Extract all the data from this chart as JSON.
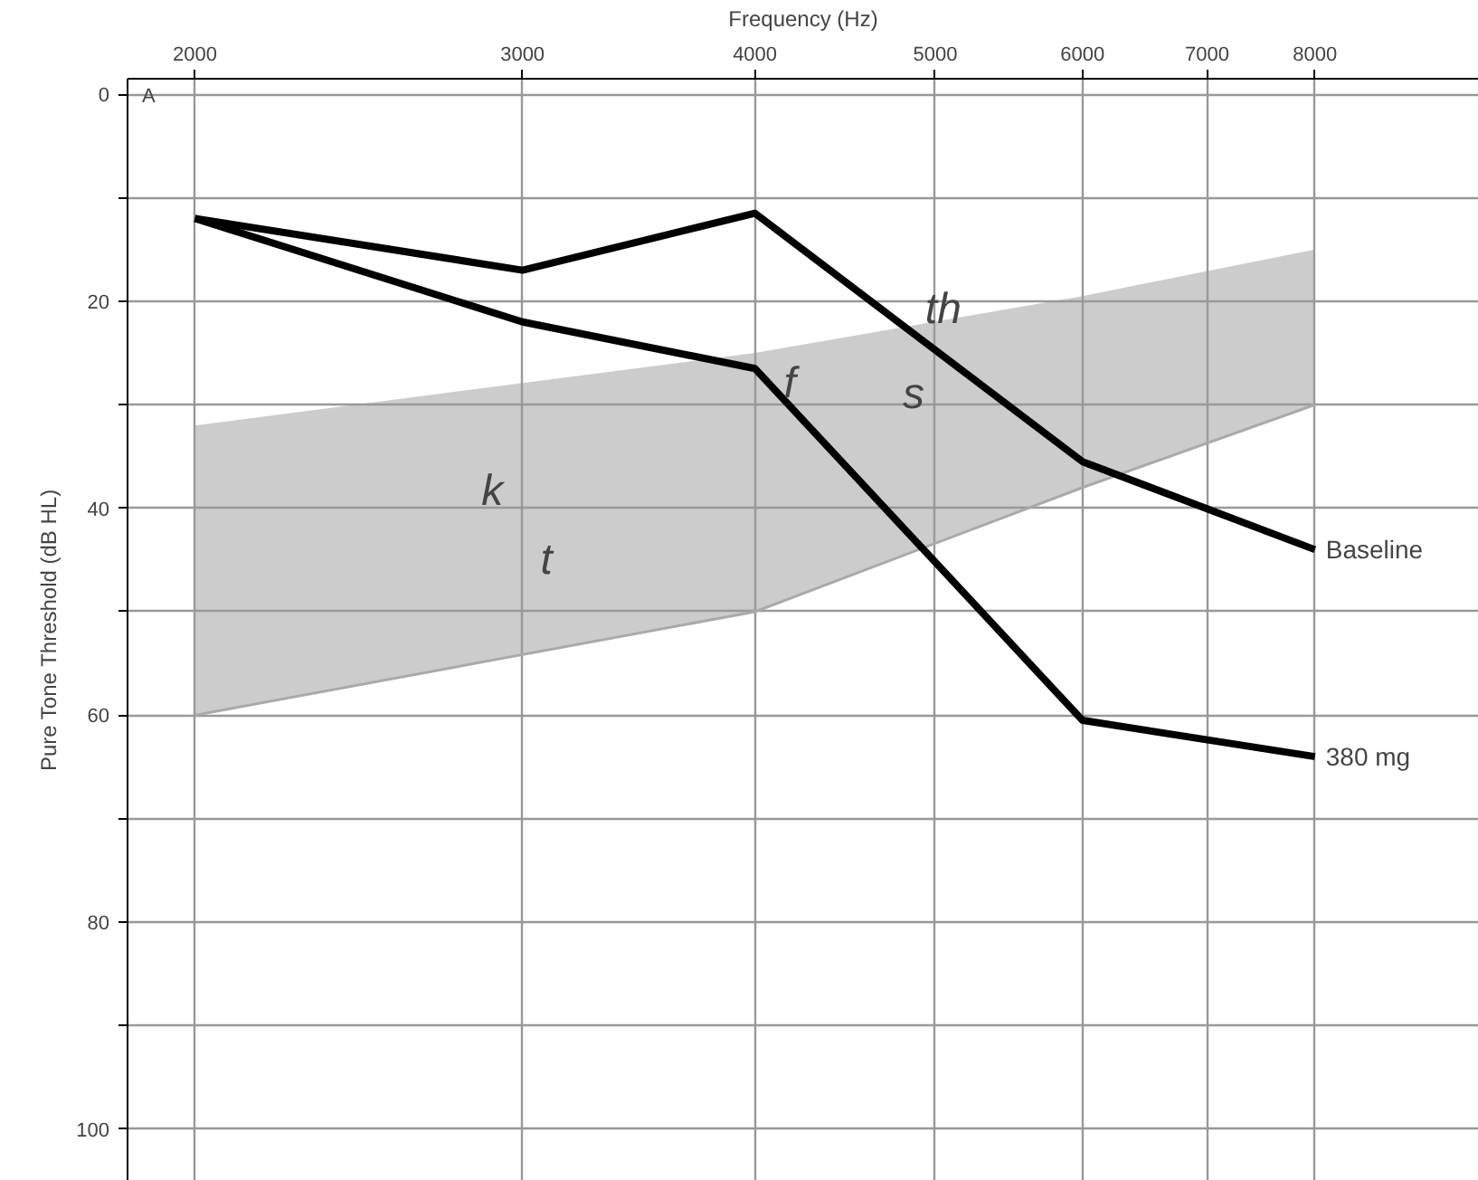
{
  "chart_data": {
    "type": "line",
    "xlabel": "Frequency (Hz)",
    "ylabel": "Pure Tone Threshold (dB HL)",
    "log": "x",
    "grid": true,
    "marker": "none",
    "line_style": "solid",
    "xlim": [
      1840,
      9800
    ],
    "xticks": [
      2000,
      3000,
      4000,
      5000,
      6000,
      7000,
      8000
    ],
    "ylim": [
      105,
      -1.5
    ],
    "yticks": [
      0,
      {
        "value": 10,
        "label": null
      },
      20,
      {
        "value": 30,
        "label": null
      },
      40,
      {
        "value": 50,
        "label": null
      },
      60,
      {
        "value": 70,
        "label": null
      },
      80,
      {
        "value": 90,
        "label": null
      },
      100
    ],
    "series": [
      {
        "color": "#aaaaaa",
        "x": [
          2000,
          4000,
          6000,
          8000
        ],
        "values": [
          60,
          50,
          38,
          30
        ],
        "lower": [
          60,
          50,
          38,
          30
        ],
        "upper": [
          32,
          25,
          19.5,
          15
        ]
      },
      {
        "name": "Baseline",
        "color": "#000000",
        "x": [
          2000,
          3000,
          4000,
          6000,
          8000
        ],
        "values": [
          12,
          17,
          11.5,
          35.5,
          44
        ]
      },
      {
        "name": "380 mg",
        "color": "#000000",
        "x": [
          2000,
          3000,
          4000,
          6000,
          8000
        ],
        "values": [
          12,
          22,
          26.5,
          60.5,
          64
        ]
      }
    ],
    "annotations": [
      "A",
      "k",
      "t",
      "f",
      "th",
      "s"
    ]
  }
}
